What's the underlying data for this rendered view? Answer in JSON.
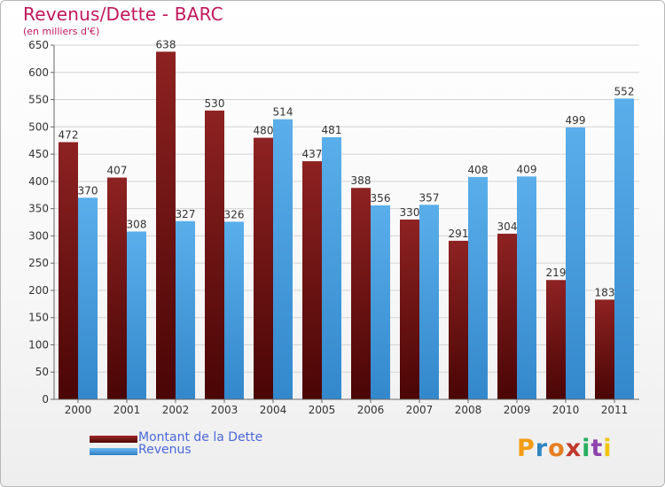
{
  "chart_data": {
    "type": "bar",
    "title": "Revenus/Dette - BARC",
    "subtitle": "(en milliers d'€)",
    "categories": [
      "2000",
      "2001",
      "2002",
      "2003",
      "2004",
      "2005",
      "2006",
      "2007",
      "2008",
      "2009",
      "2010",
      "2011"
    ],
    "series": [
      {
        "name": "Montant de la Dette",
        "color": "#7b1414",
        "values": [
          472,
          407,
          638,
          530,
          480,
          437,
          388,
          330,
          291,
          304,
          219,
          183
        ]
      },
      {
        "name": "Revenus",
        "color": "#4a9fe0",
        "values": [
          370,
          308,
          327,
          326,
          514,
          481,
          356,
          357,
          408,
          409,
          499,
          552
        ]
      }
    ],
    "ylim": [
      0,
      650
    ],
    "yticks": [
      0,
      50,
      100,
      150,
      200,
      250,
      300,
      350,
      400,
      450,
      500,
      550,
      600,
      650
    ],
    "grid": true,
    "legend_position": "bottom-left"
  },
  "logo": {
    "text": "Proxiti",
    "letters": [
      "P",
      "r",
      "o",
      "x",
      "i",
      "t",
      "i"
    ],
    "colors": [
      "#f39c12",
      "#2e86c1",
      "#e67e22",
      "#c0392b",
      "#27ae60",
      "#8e44ad",
      "#f1c40f"
    ]
  }
}
